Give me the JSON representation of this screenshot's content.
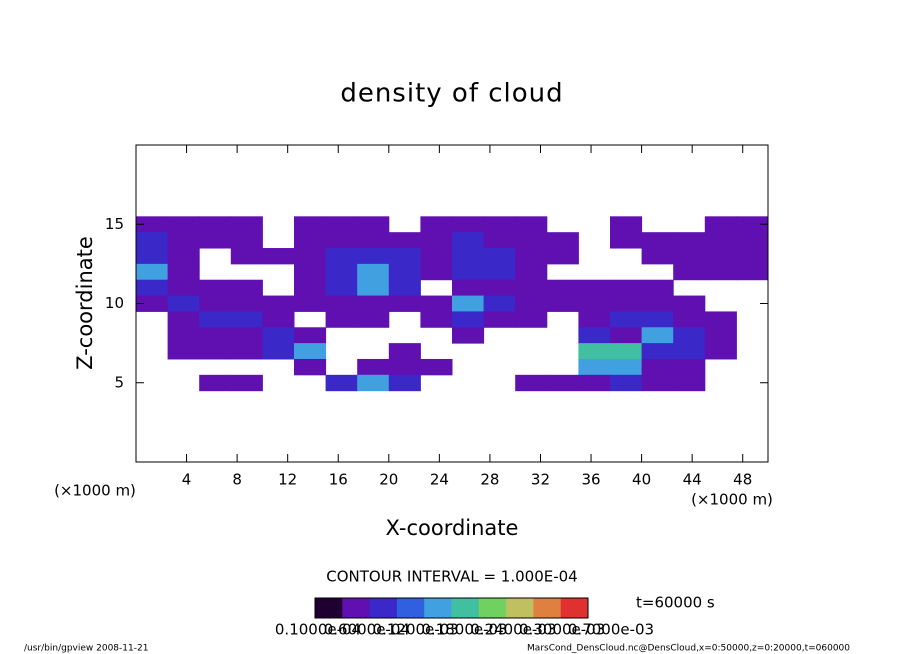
{
  "chart_data": {
    "type": "heatmap",
    "title": "density of cloud",
    "xlabel": "X-coordinate",
    "ylabel": "Z-coordinate",
    "x_unit": "(×1000 m)",
    "x": [
      1.25,
      3.75,
      6.25,
      8.75,
      11.25,
      13.75,
      16.25,
      18.75,
      21.25,
      23.75,
      26.25,
      28.75,
      31.25,
      33.75,
      36.25,
      38.75,
      41.25,
      43.75,
      46.25,
      48.75
    ],
    "y": [
      15,
      14,
      13,
      12,
      11,
      10,
      9,
      8,
      7,
      6,
      5
    ],
    "z": [
      [
        0.0001,
        0.0001,
        0.0001,
        0.0001,
        null,
        0.0001,
        0.0001,
        0.0001,
        null,
        0.0001,
        0.0001,
        0.0001,
        0.0001,
        null,
        null,
        0.0001,
        null,
        null,
        0.0001,
        0.0001
      ],
      [
        0.0002,
        0.0001,
        0.0001,
        0.0001,
        null,
        0.0001,
        0.0001,
        0.0001,
        0.0001,
        0.0001,
        0.0002,
        0.0001,
        0.0001,
        0.0001,
        null,
        0.0001,
        0.0001,
        0.0001,
        0.0001,
        0.0001
      ],
      [
        0.0002,
        0.0001,
        null,
        0.0001,
        0.0001,
        0.0001,
        0.0002,
        0.0002,
        0.0002,
        0.0001,
        0.0002,
        0.0002,
        0.0001,
        0.0001,
        null,
        null,
        0.0001,
        0.0001,
        0.0001,
        0.0001
      ],
      [
        0.0003,
        0.0001,
        null,
        null,
        null,
        0.0001,
        0.0002,
        0.0003,
        0.0002,
        0.0001,
        0.0002,
        0.0002,
        0.0001,
        null,
        null,
        null,
        null,
        0.0001,
        0.0001,
        0.0001
      ],
      [
        0.0002,
        0.0001,
        0.0001,
        0.0001,
        null,
        0.0001,
        0.0002,
        0.0003,
        0.0002,
        null,
        0.0001,
        0.0001,
        0.0001,
        0.0001,
        0.0001,
        0.0001,
        0.0001,
        null,
        null,
        null
      ],
      [
        0.0001,
        0.0002,
        0.0001,
        0.0001,
        0.0001,
        0.0001,
        0.0001,
        0.0001,
        0.0001,
        0.0001,
        0.0003,
        0.0002,
        0.0001,
        0.0001,
        0.0001,
        0.0001,
        0.0001,
        0.0001,
        null,
        null
      ],
      [
        null,
        0.0001,
        0.0002,
        0.0002,
        0.0001,
        null,
        0.0001,
        0.0001,
        null,
        0.0001,
        0.0002,
        0.0001,
        0.0001,
        null,
        0.0001,
        0.0002,
        0.0002,
        0.0001,
        0.0001,
        null
      ],
      [
        null,
        0.0001,
        0.0001,
        0.0001,
        0.0002,
        0.0001,
        null,
        null,
        null,
        null,
        0.0001,
        null,
        null,
        null,
        0.0002,
        0.0001,
        0.0003,
        0.0002,
        0.0001,
        null
      ],
      [
        null,
        0.0001,
        0.0001,
        0.0001,
        0.0002,
        0.0003,
        null,
        null,
        0.0001,
        null,
        null,
        null,
        null,
        null,
        0.0004,
        0.0004,
        0.0002,
        0.0002,
        0.0001,
        null
      ],
      [
        null,
        null,
        null,
        null,
        null,
        0.0001,
        null,
        0.0001,
        0.0001,
        0.0001,
        null,
        null,
        null,
        null,
        0.0003,
        0.0003,
        0.0001,
        0.0001,
        null,
        null
      ],
      [
        null,
        null,
        0.0001,
        0.0001,
        null,
        null,
        0.0002,
        0.0003,
        0.0002,
        null,
        null,
        null,
        0.0001,
        0.0001,
        0.0001,
        0.0002,
        0.0001,
        0.0001,
        null,
        null
      ]
    ],
    "xlim": [
      0,
      50
    ],
    "ylim": [
      0,
      20
    ],
    "xticks": [
      4,
      8,
      12,
      16,
      20,
      24,
      28,
      32,
      36,
      40,
      44,
      48
    ],
    "yticks": [
      5,
      10,
      15
    ],
    "zlim": [
      0,
      0.0007
    ],
    "colors": [
      "#200030",
      "#6010b0",
      "#3a28c8",
      "#3060e0",
      "#40a0e0",
      "#40c0a0",
      "#70d060",
      "#c0c060",
      "#e08040",
      "#e03030"
    ],
    "contour_interval": "CONTOUR INTERVAL = 1.000E-04",
    "time": "t=60000 s",
    "colorbar_labels": [
      "0.1000e-04",
      "0.6000e-04",
      "0.1200e-03",
      "0.1800e-03",
      "0.2400e-03",
      "0.3000e-03",
      "0.7000e-03"
    ],
    "footer_left": "/usr/bin/gpview   2008-11-21",
    "footer_right": "MarsCond_DensCloud.nc@DensCloud,x=0:50000,z=0:20000,t=060000"
  }
}
